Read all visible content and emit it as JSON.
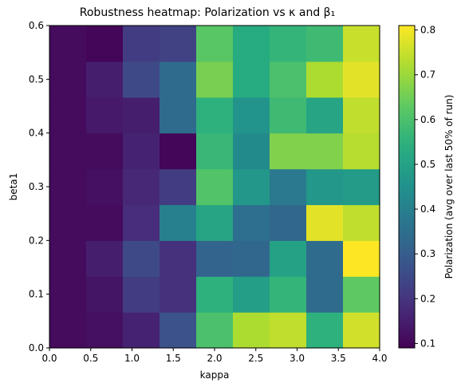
{
  "chart_data": {
    "type": "heatmap",
    "title": "Robustness heatmap: Polarization vs κ and β₁",
    "xlabel": "kappa",
    "ylabel": "beta1",
    "colorbar_label": "Polarization (avg over last 50% of run)",
    "colormap": "viridis",
    "xlim": [
      0.0,
      4.0
    ],
    "ylim": [
      0.0,
      0.6
    ],
    "clim": [
      0.09,
      0.81
    ],
    "x_ticks": [
      "0.0",
      "0.5",
      "1.0",
      "1.5",
      "2.0",
      "2.5",
      "3.0",
      "3.5",
      "4.0"
    ],
    "y_ticks": [
      "0.0",
      "0.1",
      "0.2",
      "0.3",
      "0.4",
      "0.5",
      "0.6"
    ],
    "colorbar_ticks": [
      "0.1",
      "0.2",
      "0.3",
      "0.4",
      "0.5",
      "0.6",
      "0.7",
      "0.8"
    ],
    "x_cells": [
      0.222,
      0.667,
      1.111,
      1.556,
      2.0,
      2.444,
      2.889,
      3.333,
      3.778
    ],
    "y_cells": [
      0.033,
      0.1,
      0.167,
      0.233,
      0.3,
      0.367,
      0.433,
      0.5,
      0.567
    ],
    "values": [
      [
        0.11,
        0.12,
        0.16,
        0.27,
        0.6,
        0.72,
        0.74,
        0.55,
        0.76
      ],
      [
        0.11,
        0.13,
        0.22,
        0.19,
        0.55,
        0.49,
        0.56,
        0.34,
        0.63
      ],
      [
        0.11,
        0.15,
        0.25,
        0.19,
        0.32,
        0.33,
        0.5,
        0.34,
        0.81
      ],
      [
        0.11,
        0.11,
        0.18,
        0.4,
        0.51,
        0.35,
        0.33,
        0.78,
        0.74
      ],
      [
        0.11,
        0.12,
        0.17,
        0.22,
        0.61,
        0.47,
        0.38,
        0.47,
        0.48
      ],
      [
        0.11,
        0.11,
        0.16,
        0.1,
        0.57,
        0.43,
        0.67,
        0.67,
        0.73
      ],
      [
        0.11,
        0.14,
        0.15,
        0.34,
        0.55,
        0.46,
        0.58,
        0.51,
        0.74
      ],
      [
        0.11,
        0.15,
        0.25,
        0.34,
        0.66,
        0.53,
        0.6,
        0.72,
        0.78
      ],
      [
        0.11,
        0.1,
        0.22,
        0.23,
        0.62,
        0.53,
        0.56,
        0.58,
        0.75
      ]
    ]
  }
}
